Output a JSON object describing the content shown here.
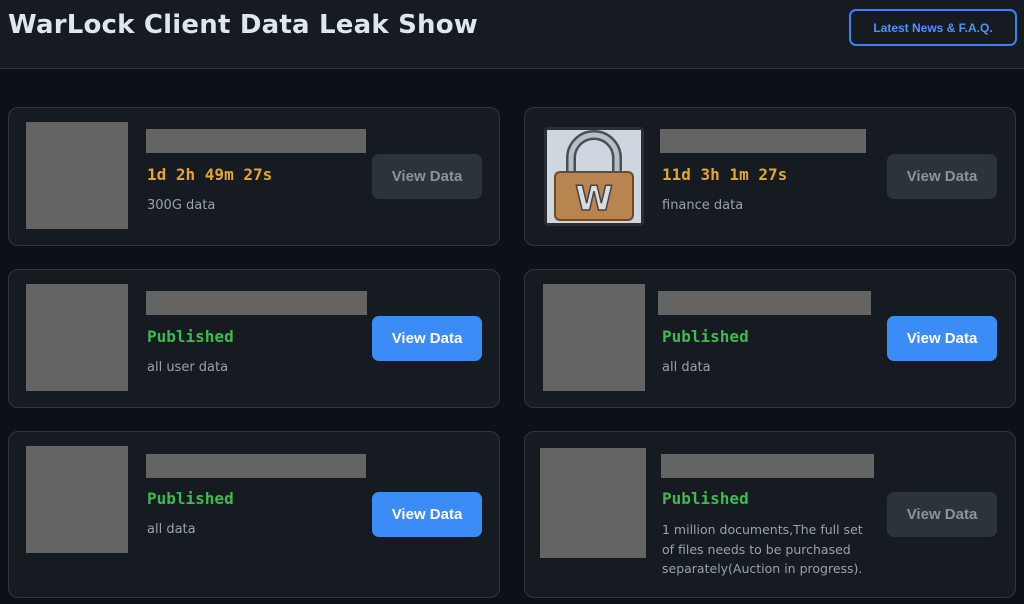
{
  "header": {
    "title": "WarLock Client Data Leak Show",
    "news_button": "Latest News & F.A.Q."
  },
  "colors": {
    "timer": "#e3a82b",
    "published": "#3fb950",
    "button_active": "#3b8cf7",
    "button_disabled": "#2d333b"
  },
  "cards": [
    {
      "status": "1d 2h 49m 27s",
      "status_type": "countdown",
      "description": "300G data",
      "button": "View Data",
      "button_enabled": false
    },
    {
      "status": "11d 3h 1m 27s",
      "status_type": "countdown",
      "description": "finance data",
      "button": "View Data",
      "button_enabled": false,
      "image": "padlock-w-icon"
    },
    {
      "status": "Published",
      "status_type": "published",
      "description": "all user data",
      "button": "View Data",
      "button_enabled": true
    },
    {
      "status": "Published",
      "status_type": "published",
      "description": "all data",
      "button": "View Data",
      "button_enabled": true
    },
    {
      "status": "Published",
      "status_type": "published",
      "description": "all data",
      "button": "View Data",
      "button_enabled": true
    },
    {
      "status": "Published",
      "status_type": "published",
      "description": "1 million documents,The full set of files needs to be purchased separately(Auction in progress).",
      "button": "View Data",
      "button_enabled": false
    }
  ]
}
